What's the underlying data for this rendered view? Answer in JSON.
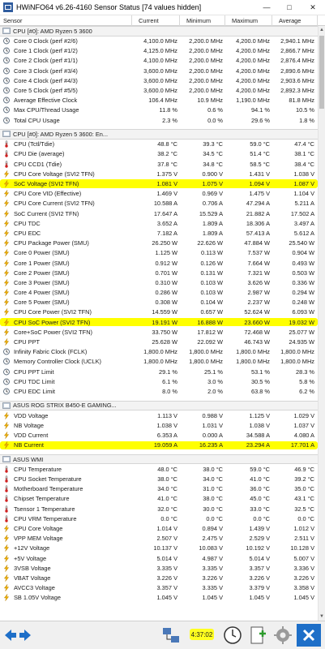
{
  "window": {
    "title": "HWiNFO64 v6.26-4160 Sensor Status [74 values hidden]"
  },
  "columns": {
    "sensor": "Sensor",
    "current": "Current",
    "minimum": "Minimum",
    "maximum": "Maximum",
    "average": "Average"
  },
  "groups": [
    {
      "title": "CPU [#0]: AMD Ryzen 5 3600",
      "rows": [
        {
          "icon": "clock-icon",
          "name": "Core 0 Clock (perf #2/6)",
          "cur": "4,100.0 MHz",
          "min": "2,200.0 MHz",
          "max": "4,200.0 MHz",
          "avg": "2,940.1 MHz"
        },
        {
          "icon": "clock-icon",
          "name": "Core 1 Clock (perf #1/2)",
          "cur": "4,125.0 MHz",
          "min": "2,200.0 MHz",
          "max": "4,200.0 MHz",
          "avg": "2,866.7 MHz"
        },
        {
          "icon": "clock-icon",
          "name": "Core 2 Clock (perf #1/1)",
          "cur": "4,100.0 MHz",
          "min": "2,200.0 MHz",
          "max": "4,200.0 MHz",
          "avg": "2,876.4 MHz"
        },
        {
          "icon": "clock-icon",
          "name": "Core 3 Clock (perf #3/4)",
          "cur": "3,600.0 MHz",
          "min": "2,200.0 MHz",
          "max": "4,200.0 MHz",
          "avg": "2,890.6 MHz"
        },
        {
          "icon": "clock-icon",
          "name": "Core 4 Clock (perf #4/3)",
          "cur": "3,600.0 MHz",
          "min": "2,200.0 MHz",
          "max": "4,200.0 MHz",
          "avg": "2,903.6 MHz"
        },
        {
          "icon": "clock-icon",
          "name": "Core 5 Clock (perf #5/5)",
          "cur": "3,600.0 MHz",
          "min": "2,200.0 MHz",
          "max": "4,200.0 MHz",
          "avg": "2,892.3 MHz"
        },
        {
          "icon": "clock-icon",
          "name": "Average Effective Clock",
          "cur": "106.4 MHz",
          "min": "10.9 MHz",
          "max": "1,190.0 MHz",
          "avg": "81.8 MHz"
        },
        {
          "icon": "clock-icon",
          "name": "Max CPU/Thread Usage",
          "cur": "11.8 %",
          "min": "0.6 %",
          "max": "94.1 %",
          "avg": "10.5 %"
        },
        {
          "icon": "clock-icon",
          "name": "Total CPU Usage",
          "cur": "2.3 %",
          "min": "0.0 %",
          "max": "29.6 %",
          "avg": "1.8 %"
        }
      ]
    },
    {
      "title": "CPU [#0]: AMD Ryzen 5 3600: En...",
      "rows": [
        {
          "icon": "thermometer-icon",
          "name": "CPU (Tctl/Tdie)",
          "cur": "48.8 °C",
          "min": "39.3 °C",
          "max": "59.0 °C",
          "avg": "47.4 °C"
        },
        {
          "icon": "thermometer-icon",
          "name": "CPU Die (average)",
          "cur": "38.2 °C",
          "min": "34.5 °C",
          "max": "51.4 °C",
          "avg": "38.1 °C"
        },
        {
          "icon": "thermometer-icon",
          "name": "CPU CCD1 (Tdie)",
          "cur": "37.8 °C",
          "min": "34.8 °C",
          "max": "58.5 °C",
          "avg": "38.4 °C"
        },
        {
          "icon": "bolt-icon",
          "name": "CPU Core Voltage (SVI2 TFN)",
          "cur": "1.375 V",
          "min": "0.900 V",
          "max": "1.431 V",
          "avg": "1.038 V"
        },
        {
          "icon": "bolt-icon",
          "name": "SoC Voltage (SVI2 TFN)",
          "cur": "1.081 V",
          "min": "1.075 V",
          "max": "1.094 V",
          "avg": "1.087 V",
          "highlight": true
        },
        {
          "icon": "bolt-icon",
          "name": "CPU Core VID (Effective)",
          "cur": "1.469 V",
          "min": "0.969 V",
          "max": "1.475 V",
          "avg": "1.104 V"
        },
        {
          "icon": "bolt-icon",
          "name": "CPU Core Current (SVI2 TFN)",
          "cur": "10.588 A",
          "min": "0.706 A",
          "max": "47.294 A",
          "avg": "5.211 A"
        },
        {
          "icon": "bolt-icon",
          "name": "SoC Current (SVI2 TFN)",
          "cur": "17.647 A",
          "min": "15.529 A",
          "max": "21.882 A",
          "avg": "17.502 A"
        },
        {
          "icon": "bolt-icon",
          "name": "CPU TDC",
          "cur": "3.652 A",
          "min": "1.809 A",
          "max": "18.306 A",
          "avg": "3.497 A"
        },
        {
          "icon": "bolt-icon",
          "name": "CPU EDC",
          "cur": "7.182 A",
          "min": "1.809 A",
          "max": "57.413 A",
          "avg": "5.612 A"
        },
        {
          "icon": "bolt-icon",
          "name": "CPU Package Power (SMU)",
          "cur": "26.250 W",
          "min": "22.626 W",
          "max": "47.884 W",
          "avg": "25.540 W"
        },
        {
          "icon": "bolt-icon",
          "name": "Core 0 Power (SMU)",
          "cur": "1.125 W",
          "min": "0.113 W",
          "max": "7.537 W",
          "avg": "0.904 W"
        },
        {
          "icon": "bolt-icon",
          "name": "Core 1 Power (SMU)",
          "cur": "0.912 W",
          "min": "0.126 W",
          "max": "7.664 W",
          "avg": "0.493 W"
        },
        {
          "icon": "bolt-icon",
          "name": "Core 2 Power (SMU)",
          "cur": "0.701 W",
          "min": "0.131 W",
          "max": "7.321 W",
          "avg": "0.503 W"
        },
        {
          "icon": "bolt-icon",
          "name": "Core 3 Power (SMU)",
          "cur": "0.310 W",
          "min": "0.103 W",
          "max": "3.626 W",
          "avg": "0.336 W"
        },
        {
          "icon": "bolt-icon",
          "name": "Core 4 Power (SMU)",
          "cur": "0.286 W",
          "min": "0.103 W",
          "max": "2.987 W",
          "avg": "0.294 W"
        },
        {
          "icon": "bolt-icon",
          "name": "Core 5 Power (SMU)",
          "cur": "0.308 W",
          "min": "0.104 W",
          "max": "2.237 W",
          "avg": "0.248 W"
        },
        {
          "icon": "bolt-icon",
          "name": "CPU Core Power (SVI2 TFN)",
          "cur": "14.559 W",
          "min": "0.657 W",
          "max": "52.624 W",
          "avg": "6.093 W"
        },
        {
          "icon": "bolt-icon",
          "name": "CPU SoC Power (SVI2 TFN)",
          "cur": "19.191 W",
          "min": "16.888 W",
          "max": "23.660 W",
          "avg": "19.032 W",
          "highlight": true
        },
        {
          "icon": "bolt-icon",
          "name": "Core+SoC Power (SVI2 TFN)",
          "cur": "33.750 W",
          "min": "17.812 W",
          "max": "72.468 W",
          "avg": "25.077 W"
        },
        {
          "icon": "bolt-icon",
          "name": "CPU PPT",
          "cur": "25.628 W",
          "min": "22.092 W",
          "max": "46.743 W",
          "avg": "24.935 W"
        },
        {
          "icon": "clock-icon",
          "name": "Infinity Fabric Clock (FCLK)",
          "cur": "1,800.0 MHz",
          "min": "1,800.0 MHz",
          "max": "1,800.0 MHz",
          "avg": "1,800.0 MHz"
        },
        {
          "icon": "clock-icon",
          "name": "Memory Controller Clock (UCLK)",
          "cur": "1,800.0 MHz",
          "min": "1,800.0 MHz",
          "max": "1,800.0 MHz",
          "avg": "1,800.0 MHz"
        },
        {
          "icon": "clock-icon",
          "name": "CPU PPT Limit",
          "cur": "29.1 %",
          "min": "25.1 %",
          "max": "53.1 %",
          "avg": "28.3 %"
        },
        {
          "icon": "clock-icon",
          "name": "CPU TDC Limit",
          "cur": "6.1 %",
          "min": "3.0 %",
          "max": "30.5 %",
          "avg": "5.8 %"
        },
        {
          "icon": "clock-icon",
          "name": "CPU EDC Limit",
          "cur": "8.0 %",
          "min": "2.0 %",
          "max": "63.8 %",
          "avg": "6.2 %"
        }
      ]
    },
    {
      "title": "ASUS ROG STRIX B450-E GAMING...",
      "rows": [
        {
          "icon": "bolt-icon",
          "name": "VDD Voltage",
          "cur": "1.113 V",
          "min": "0.988 V",
          "max": "1.125 V",
          "avg": "1.029 V"
        },
        {
          "icon": "bolt-icon",
          "name": "NB Voltage",
          "cur": "1.038 V",
          "min": "1.031 V",
          "max": "1.038 V",
          "avg": "1.037 V"
        },
        {
          "icon": "bolt-icon",
          "name": "VDD Current",
          "cur": "6.353 A",
          "min": "0.000 A",
          "max": "34.588 A",
          "avg": "4.080 A"
        },
        {
          "icon": "bolt-icon",
          "name": "NB Current",
          "cur": "19.059 A",
          "min": "16.235 A",
          "max": "23.294 A",
          "avg": "17.701 A",
          "highlight": true
        }
      ]
    },
    {
      "title": "ASUS WMI",
      "rows": [
        {
          "icon": "thermometer-icon",
          "name": "CPU Temperature",
          "cur": "48.0 °C",
          "min": "38.0 °C",
          "max": "59.0 °C",
          "avg": "46.9 °C"
        },
        {
          "icon": "thermometer-icon",
          "name": "CPU Socket Temperature",
          "cur": "38.0 °C",
          "min": "34.0 °C",
          "max": "41.0 °C",
          "avg": "39.2 °C"
        },
        {
          "icon": "thermometer-icon",
          "name": "Motherboard Temperature",
          "cur": "34.0 °C",
          "min": "31.0 °C",
          "max": "36.0 °C",
          "avg": "35.0 °C"
        },
        {
          "icon": "thermometer-icon",
          "name": "Chipset Temperature",
          "cur": "41.0 °C",
          "min": "38.0 °C",
          "max": "45.0 °C",
          "avg": "43.1 °C"
        },
        {
          "icon": "thermometer-icon",
          "name": "Tsensor 1 Temperature",
          "cur": "32.0 °C",
          "min": "30.0 °C",
          "max": "33.0 °C",
          "avg": "32.5 °C"
        },
        {
          "icon": "thermometer-icon",
          "name": "CPU VRM Temperature",
          "cur": "0.0 °C",
          "min": "0.0 °C",
          "max": "0.0 °C",
          "avg": "0.0 °C"
        },
        {
          "icon": "bolt-icon",
          "name": "CPU Core Voltage",
          "cur": "1.014 V",
          "min": "0.894 V",
          "max": "1.439 V",
          "avg": "1.012 V"
        },
        {
          "icon": "bolt-icon",
          "name": "VPP MEM Voltage",
          "cur": "2.507 V",
          "min": "2.475 V",
          "max": "2.529 V",
          "avg": "2.511 V"
        },
        {
          "icon": "bolt-icon",
          "name": "+12V Voltage",
          "cur": "10.137 V",
          "min": "10.083 V",
          "max": "10.192 V",
          "avg": "10.128 V"
        },
        {
          "icon": "bolt-icon",
          "name": "+5V Voltage",
          "cur": "5.014 V",
          "min": "4.987 V",
          "max": "5.014 V",
          "avg": "5.007 V"
        },
        {
          "icon": "bolt-icon",
          "name": "3VSB Voltage",
          "cur": "3.335 V",
          "min": "3.335 V",
          "max": "3.357 V",
          "avg": "3.336 V"
        },
        {
          "icon": "bolt-icon",
          "name": "VBAT Voltage",
          "cur": "3.226 V",
          "min": "3.226 V",
          "max": "3.226 V",
          "avg": "3.226 V"
        },
        {
          "icon": "bolt-icon",
          "name": "AVCC3 Voltage",
          "cur": "3.357 V",
          "min": "3.335 V",
          "max": "3.379 V",
          "avg": "3.358 V"
        },
        {
          "icon": "bolt-icon",
          "name": "SB 1.05V Voltage",
          "cur": "1.045 V",
          "min": "1.045 V",
          "max": "1.045 V",
          "avg": "1.045 V"
        }
      ]
    }
  ],
  "toolbar": {
    "timer": "4:37:02"
  },
  "colors": {
    "highlight": "#ffff00",
    "accent": "#1e6fc8"
  }
}
